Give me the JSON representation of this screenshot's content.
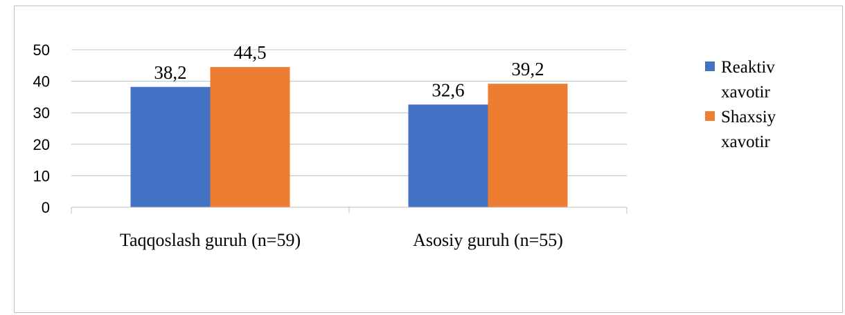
{
  "chart_data": {
    "type": "bar",
    "categories": [
      "Taqqoslash guruh (n=59)",
      "Asosiy guruh (n=55)"
    ],
    "series": [
      {
        "name": "Reaktiv xavotir",
        "values": [
          38.2,
          32.6
        ],
        "labels": [
          "38,2",
          "32,6"
        ],
        "color": "#4472C4"
      },
      {
        "name": "Shaxsiy xavotir",
        "values": [
          44.5,
          39.2
        ],
        "labels": [
          "44,5",
          "39,2"
        ],
        "color": "#ED7D31"
      }
    ],
    "title": "",
    "xlabel": "",
    "ylabel": "",
    "ylim": [
      0,
      50
    ],
    "yticks": [
      0,
      10,
      20,
      30,
      40,
      50
    ],
    "grid": true,
    "legend_position": "right",
    "legend_lines": [
      [
        "Reaktiv",
        "xavotir"
      ],
      [
        "Shaxsiy",
        "xavotir"
      ]
    ]
  }
}
